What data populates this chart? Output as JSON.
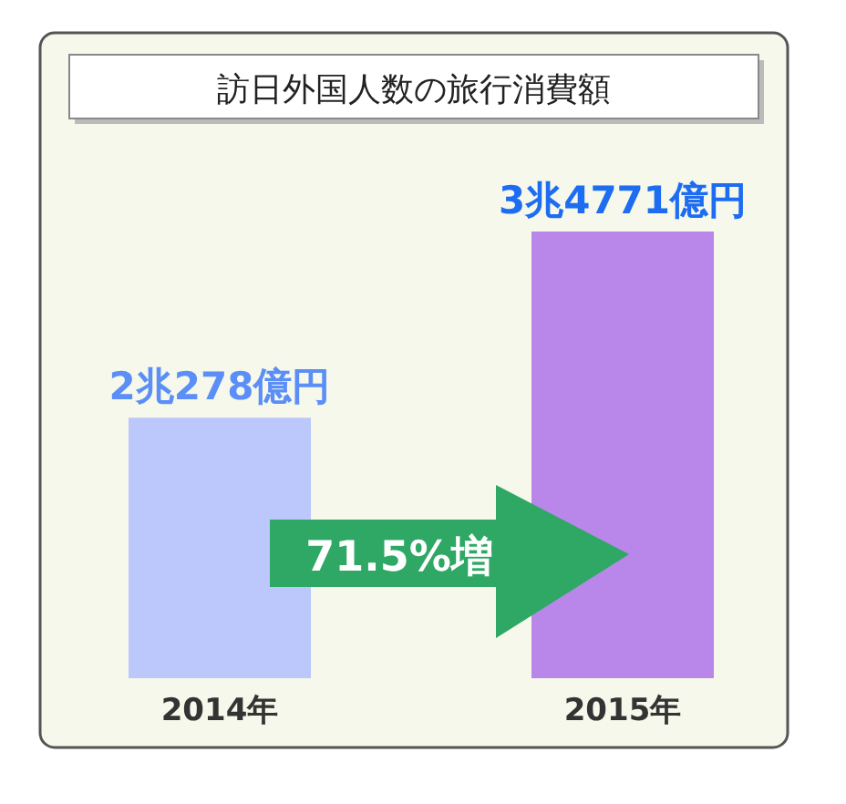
{
  "chart_data": {
    "type": "bar",
    "title": "訪日外国人数の旅行消費額",
    "categories": [
      "2014年",
      "2015年"
    ],
    "values": [
      2.0278,
      3.4771
    ],
    "colors": [
      "#bcc8fb",
      "#b987ea"
    ],
    "value_labels": [
      "2兆278億円",
      "3兆4771億円"
    ],
    "annotations": [
      "71.5%増"
    ]
  }
}
